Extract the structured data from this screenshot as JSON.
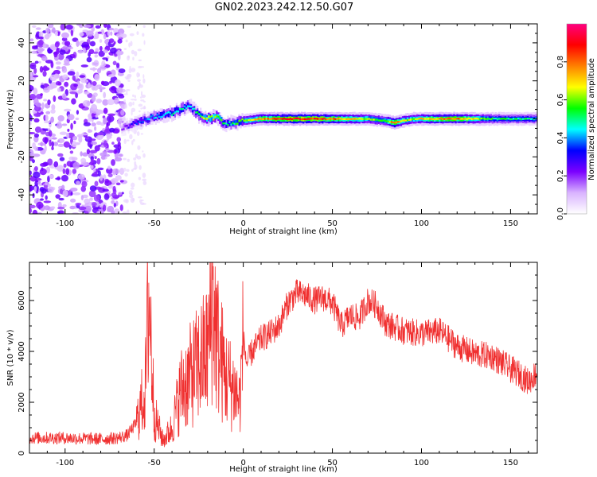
{
  "figure": {
    "title": "GN02.2023.242.12.50.G07"
  },
  "chart_data": [
    {
      "type": "heatmap",
      "xlabel": "Height of straight line (km)",
      "ylabel": "Frequency (Hz)",
      "xlim": [
        -120,
        165
      ],
      "ylim": [
        -50,
        50
      ],
      "xticks": [
        -100,
        -50,
        0,
        50,
        100,
        150
      ],
      "yticks": [
        -40,
        -20,
        0,
        20,
        40
      ],
      "colorbar": {
        "label": "Normalized spectral amplitude",
        "range": [
          0,
          1
        ],
        "ticks": [
          "0.0",
          "0.2",
          "0.4",
          "0.6",
          "0.8"
        ],
        "colors": [
          "#ffffff",
          "#d9b3ff",
          "#7b00ff",
          "#0000ff",
          "#00ffff",
          "#00ff00",
          "#ffff00",
          "#ff8000",
          "#ff0000",
          "#ff0080"
        ]
      },
      "noise_region": {
        "x_range": [
          -120,
          -67
        ],
        "y_range": [
          -50,
          50
        ],
        "amplitude": 0.1
      },
      "sparse_region": {
        "x_range": [
          -67,
          -55
        ],
        "amplitude": 0.05
      },
      "ridge": {
        "x": [
          -68,
          -60,
          -50,
          -40,
          -35,
          -30,
          -25,
          -20,
          -15,
          -10,
          -5,
          0,
          10,
          30,
          50,
          70,
          80,
          85,
          90,
          95,
          100,
          120,
          140,
          165
        ],
        "y": [
          -5,
          -2,
          1,
          3,
          5,
          7,
          2,
          0,
          1,
          -3,
          -2,
          -1,
          0,
          0,
          0,
          0,
          -1,
          -2,
          -1,
          0,
          0,
          0,
          0,
          0
        ],
        "amplitude": [
          0.2,
          0.35,
          0.45,
          0.5,
          0.5,
          0.45,
          0.55,
          0.7,
          0.7,
          0.5,
          0.55,
          0.6,
          0.8,
          0.95,
          0.85,
          0.65,
          0.6,
          0.9,
          0.7,
          0.65,
          0.75,
          0.85,
          0.55,
          0.5
        ]
      }
    },
    {
      "type": "line",
      "xlabel": "Height of straight line (km)",
      "ylabel": "SNR (10 * v/v)",
      "xlim": [
        -120,
        165
      ],
      "ylim": [
        0,
        7500
      ],
      "xticks": [
        -100,
        -50,
        0,
        50,
        100,
        150
      ],
      "yticks": [
        0,
        2000,
        4000,
        6000
      ],
      "color": "#f03030",
      "x": [
        -120,
        -100,
        -80,
        -70,
        -65,
        -60,
        -55,
        -53,
        -50,
        -45,
        -40,
        -35,
        -30,
        -25,
        -20,
        -17,
        -15,
        -10,
        -5,
        -2,
        0,
        2,
        5,
        10,
        15,
        20,
        25,
        30,
        35,
        40,
        45,
        50,
        55,
        60,
        65,
        70,
        75,
        80,
        90,
        100,
        110,
        120,
        130,
        140,
        150,
        155,
        160,
        165
      ],
      "y": [
        600,
        600,
        550,
        600,
        700,
        1200,
        2500,
        6500,
        1500,
        500,
        1000,
        2500,
        3000,
        3500,
        4000,
        6200,
        4500,
        3000,
        2500,
        2000,
        4500,
        3500,
        4000,
        4500,
        4700,
        5000,
        5900,
        6300,
        6200,
        6000,
        6100,
        5900,
        5000,
        5400,
        5300,
        6000,
        5800,
        5100,
        4800,
        4700,
        4800,
        4200,
        3900,
        3800,
        3300,
        3100,
        2800,
        3200
      ]
    }
  ]
}
